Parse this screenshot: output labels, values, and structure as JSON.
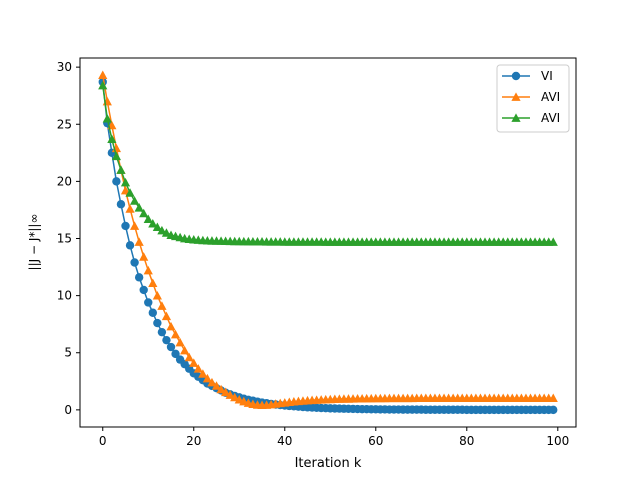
{
  "chart_data": {
    "type": "line",
    "title": "",
    "xlabel": "Iteration k",
    "ylabel": "||J − J*||∞",
    "xlim": [
      -5,
      104
    ],
    "ylim": [
      -1.5,
      30.8
    ],
    "xticks": [
      0,
      20,
      40,
      60,
      80,
      100
    ],
    "yticks": [
      0,
      5,
      10,
      15,
      20,
      25,
      30
    ],
    "grid": false,
    "legend_position": "top-right",
    "series": [
      {
        "name": "VI",
        "color": "#1f77b4",
        "marker": "circle",
        "x": [
          0,
          1,
          2,
          3,
          4,
          5,
          6,
          7,
          8,
          9,
          10,
          11,
          12,
          13,
          14,
          15,
          16,
          17,
          18,
          19,
          20,
          21,
          22,
          23,
          24,
          25,
          26,
          27,
          28,
          29,
          30,
          31,
          32,
          33,
          34,
          35,
          36,
          37,
          38,
          39,
          40,
          41,
          42,
          43,
          44,
          45,
          46,
          47,
          48,
          49,
          50,
          51,
          52,
          53,
          54,
          55,
          56,
          57,
          58,
          59,
          60,
          61,
          62,
          63,
          64,
          65,
          66,
          67,
          68,
          69,
          70,
          71,
          72,
          73,
          74,
          75,
          76,
          77,
          78,
          79,
          80,
          81,
          82,
          83,
          84,
          85,
          86,
          87,
          88,
          89,
          90,
          91,
          92,
          93,
          94,
          95,
          96,
          97,
          98,
          99
        ],
        "y": [
          28.7,
          25.1,
          22.5,
          20.0,
          18.0,
          16.1,
          14.4,
          12.9,
          11.6,
          10.5,
          9.4,
          8.5,
          7.6,
          6.8,
          6.1,
          5.5,
          4.9,
          4.4,
          4.0,
          3.6,
          3.2,
          2.9,
          2.6,
          2.3,
          2.1,
          1.9,
          1.7,
          1.5,
          1.36,
          1.22,
          1.1,
          0.98,
          0.88,
          0.8,
          0.72,
          0.64,
          0.58,
          0.52,
          0.47,
          0.42,
          0.38,
          0.34,
          0.31,
          0.28,
          0.25,
          0.22,
          0.2,
          0.18,
          0.16,
          0.15,
          0.13,
          0.12,
          0.11,
          0.1,
          0.09,
          0.08,
          0.07,
          0.06,
          0.06,
          0.05,
          0.05,
          0.04,
          0.04,
          0.03,
          0.03,
          0.03,
          0.02,
          0.02,
          0.02,
          0.02,
          0.02,
          0.01,
          0.01,
          0.01,
          0.01,
          0.01,
          0.01,
          0.01,
          0.01,
          0.01,
          0.0,
          0.0,
          0.0,
          0.0,
          0.0,
          0.0,
          0.0,
          0.0,
          0.0,
          0.0,
          0.0,
          0.0,
          0.0,
          0.0,
          0.0,
          0.0,
          0.0,
          0.0,
          0.0,
          0.0
        ]
      },
      {
        "name": "AVI",
        "color": "#ff7f0e",
        "marker": "triangle",
        "x": [
          0,
          1,
          2,
          3,
          4,
          5,
          6,
          7,
          8,
          9,
          10,
          11,
          12,
          13,
          14,
          15,
          16,
          17,
          18,
          19,
          20,
          21,
          22,
          23,
          24,
          25,
          26,
          27,
          28,
          29,
          30,
          31,
          32,
          33,
          34,
          35,
          36,
          37,
          38,
          39,
          40,
          41,
          42,
          43,
          44,
          45,
          46,
          47,
          48,
          49,
          50,
          51,
          52,
          53,
          54,
          55,
          56,
          57,
          58,
          59,
          60,
          61,
          62,
          63,
          64,
          65,
          66,
          67,
          68,
          69,
          70,
          71,
          72,
          73,
          74,
          75,
          76,
          77,
          78,
          79,
          80,
          81,
          82,
          83,
          84,
          85,
          86,
          87,
          88,
          89,
          90,
          91,
          92,
          93,
          94,
          95,
          96,
          97,
          98,
          99
        ],
        "y": [
          29.3,
          27.0,
          24.9,
          22.9,
          21.0,
          19.2,
          17.6,
          16.1,
          14.7,
          13.4,
          12.2,
          11.1,
          10.0,
          9.1,
          8.2,
          7.3,
          6.6,
          5.9,
          5.2,
          4.6,
          4.1,
          3.6,
          3.15,
          2.75,
          2.4,
          2.1,
          1.8,
          1.55,
          1.3,
          1.1,
          0.9,
          0.74,
          0.6,
          0.5,
          0.44,
          0.42,
          0.43,
          0.47,
          0.53,
          0.58,
          0.63,
          0.68,
          0.72,
          0.76,
          0.79,
          0.82,
          0.85,
          0.87,
          0.89,
          0.91,
          0.92,
          0.94,
          0.95,
          0.96,
          0.97,
          0.98,
          0.99,
          0.99,
          1.0,
          1.0,
          1.01,
          1.01,
          1.01,
          1.02,
          1.02,
          1.02,
          1.02,
          1.02,
          1.02,
          1.03,
          1.03,
          1.03,
          1.03,
          1.03,
          1.03,
          1.03,
          1.03,
          1.03,
          1.03,
          1.03,
          1.03,
          1.03,
          1.03,
          1.03,
          1.03,
          1.03,
          1.03,
          1.03,
          1.03,
          1.03,
          1.03,
          1.03,
          1.03,
          1.03,
          1.03,
          1.03,
          1.03,
          1.03,
          1.03,
          1.03
        ]
      },
      {
        "name": "AVI",
        "color": "#2ca02c",
        "marker": "triangle",
        "x": [
          0,
          1,
          2,
          3,
          4,
          5,
          6,
          7,
          8,
          9,
          10,
          11,
          12,
          13,
          14,
          15,
          16,
          17,
          18,
          19,
          20,
          21,
          22,
          23,
          24,
          25,
          26,
          27,
          28,
          29,
          30,
          31,
          32,
          33,
          34,
          35,
          36,
          37,
          38,
          39,
          40,
          41,
          42,
          43,
          44,
          45,
          46,
          47,
          48,
          49,
          50,
          51,
          52,
          53,
          54,
          55,
          56,
          57,
          58,
          59,
          60,
          61,
          62,
          63,
          64,
          65,
          66,
          67,
          68,
          69,
          70,
          71,
          72,
          73,
          74,
          75,
          76,
          77,
          78,
          79,
          80,
          81,
          82,
          83,
          84,
          85,
          86,
          87,
          88,
          89,
          90,
          91,
          92,
          93,
          94,
          95,
          96,
          97,
          98,
          99
        ],
        "y": [
          28.4,
          25.5,
          23.7,
          22.2,
          21.0,
          19.9,
          19.0,
          18.3,
          17.7,
          17.2,
          16.7,
          16.3,
          16.0,
          15.7,
          15.5,
          15.3,
          15.2,
          15.1,
          15.0,
          14.95,
          14.9,
          14.87,
          14.84,
          14.82,
          14.8,
          14.79,
          14.78,
          14.77,
          14.76,
          14.75,
          14.75,
          14.74,
          14.74,
          14.73,
          14.73,
          14.73,
          14.72,
          14.72,
          14.72,
          14.72,
          14.71,
          14.71,
          14.71,
          14.71,
          14.71,
          14.71,
          14.71,
          14.71,
          14.71,
          14.7,
          14.7,
          14.7,
          14.7,
          14.7,
          14.7,
          14.7,
          14.7,
          14.7,
          14.7,
          14.7,
          14.7,
          14.7,
          14.7,
          14.7,
          14.7,
          14.7,
          14.7,
          14.7,
          14.7,
          14.7,
          14.7,
          14.7,
          14.7,
          14.7,
          14.7,
          14.7,
          14.7,
          14.7,
          14.7,
          14.7,
          14.7,
          14.7,
          14.7,
          14.7,
          14.7,
          14.7,
          14.7,
          14.7,
          14.7,
          14.7,
          14.7,
          14.7,
          14.7,
          14.7,
          14.7,
          14.7,
          14.7,
          14.7,
          14.7,
          14.7
        ]
      }
    ]
  }
}
